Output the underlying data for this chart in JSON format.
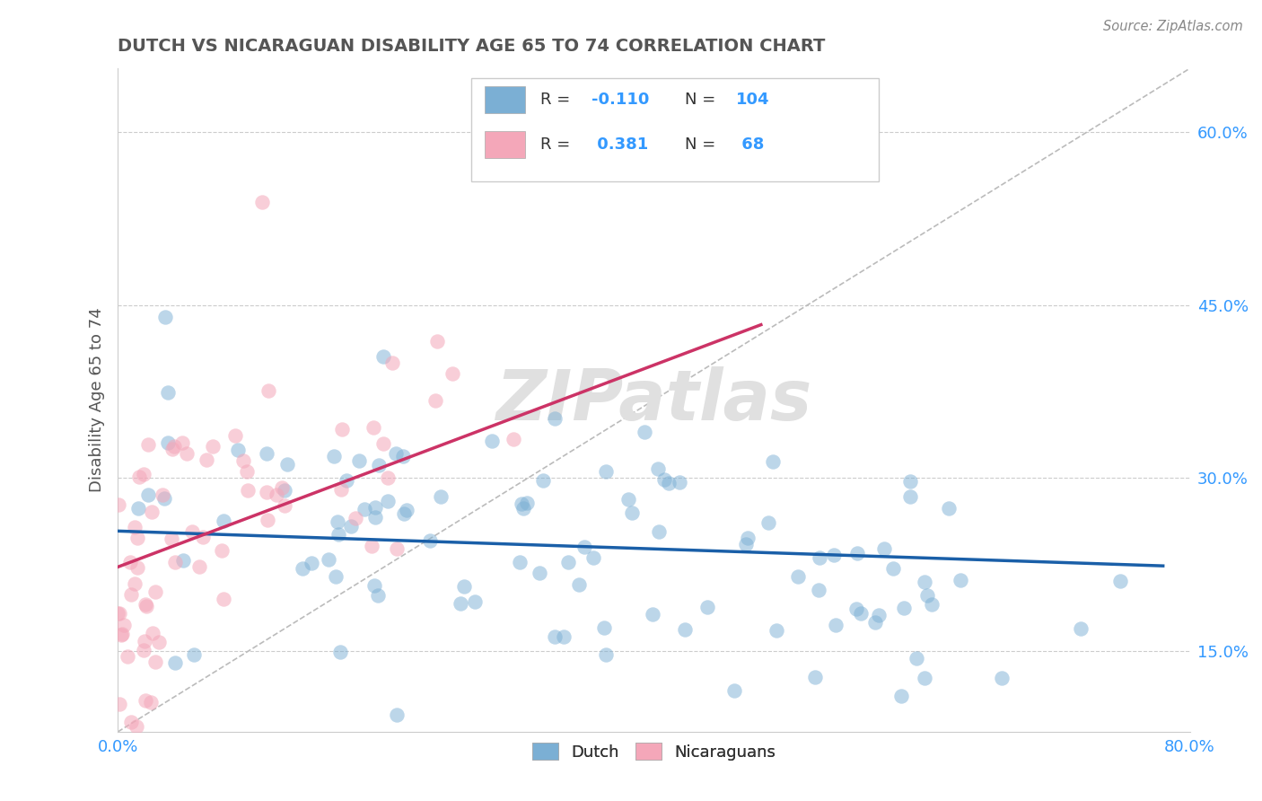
{
  "title": "DUTCH VS NICARAGUAN DISABILITY AGE 65 TO 74 CORRELATION CHART",
  "source_text": "Source: ZipAtlas.com",
  "ylabel": "Disability Age 65 to 74",
  "xlabel": "",
  "xlim": [
    0.0,
    0.8
  ],
  "ylim": [
    0.08,
    0.655
  ],
  "xticks": [
    0.0,
    0.2,
    0.4,
    0.6,
    0.8
  ],
  "xticklabels_show": [
    "0.0%",
    "80.0%"
  ],
  "ytick_positions": [
    0.15,
    0.3,
    0.45,
    0.6
  ],
  "ytick_labels": [
    "15.0%",
    "30.0%",
    "45.0%",
    "60.0%"
  ],
  "dutch_color": "#7bafd4",
  "dutch_edge_color": "#5a9abf",
  "nicaraguan_color": "#f4a7b9",
  "nicaraguan_edge_color": "#e07090",
  "dutch_R": -0.11,
  "dutch_N": 104,
  "nicaraguan_R": 0.381,
  "nicaraguan_N": 68,
  "dutch_trend_color": "#1a5fa8",
  "nicaraguan_trend_color": "#cc3366",
  "ref_line_color": "#bbbbbb",
  "background_color": "#ffffff",
  "grid_color": "#cccccc",
  "title_color": "#555555",
  "watermark_text": "ZIPatlas",
  "watermark_color": "#e0e0e0",
  "source_color": "#888888",
  "tick_color": "#3399ff",
  "ylabel_color": "#555555"
}
